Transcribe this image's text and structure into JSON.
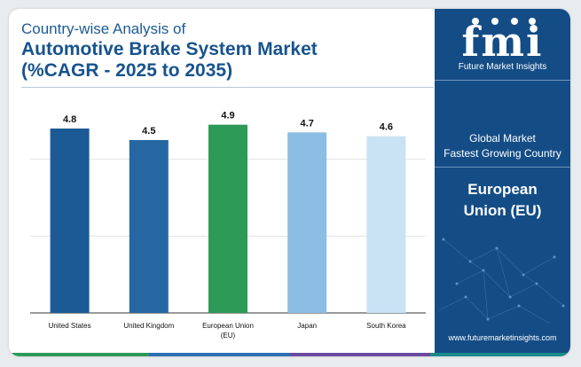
{
  "header": {
    "title_line1": "Country-wise Analysis of",
    "title_line2": "Automotive Brake System Market",
    "title_line3": "(%CAGR - 2025 to 2035)"
  },
  "sidebar": {
    "brand": "fmi",
    "brand_name": "Future Market Insights",
    "label_line1": "Global Market",
    "label_line2": "Fastest Growing Country",
    "country_line1": "European",
    "country_line2": "Union (EU)",
    "url": "www.futuremarketinsights.com"
  },
  "colors": {
    "sidebar_bg": "#144d86",
    "bar_colors": [
      "#1b5a95",
      "#2666a3",
      "#2d9a58",
      "#8cbde3",
      "#c9e2f4"
    ],
    "bottom_stripe": [
      "#2d9a58",
      "#2a6fb0",
      "#6b4aa0",
      "#1b8a8a"
    ]
  },
  "chart_data": {
    "type": "bar",
    "categories": [
      "United States",
      "United Kingdom",
      "European Union (EU)",
      "Japan",
      "South Korea"
    ],
    "values": [
      4.8,
      4.5,
      4.9,
      4.7,
      4.6
    ],
    "ylim": [
      0,
      6
    ],
    "grid": true,
    "legend": "none"
  }
}
